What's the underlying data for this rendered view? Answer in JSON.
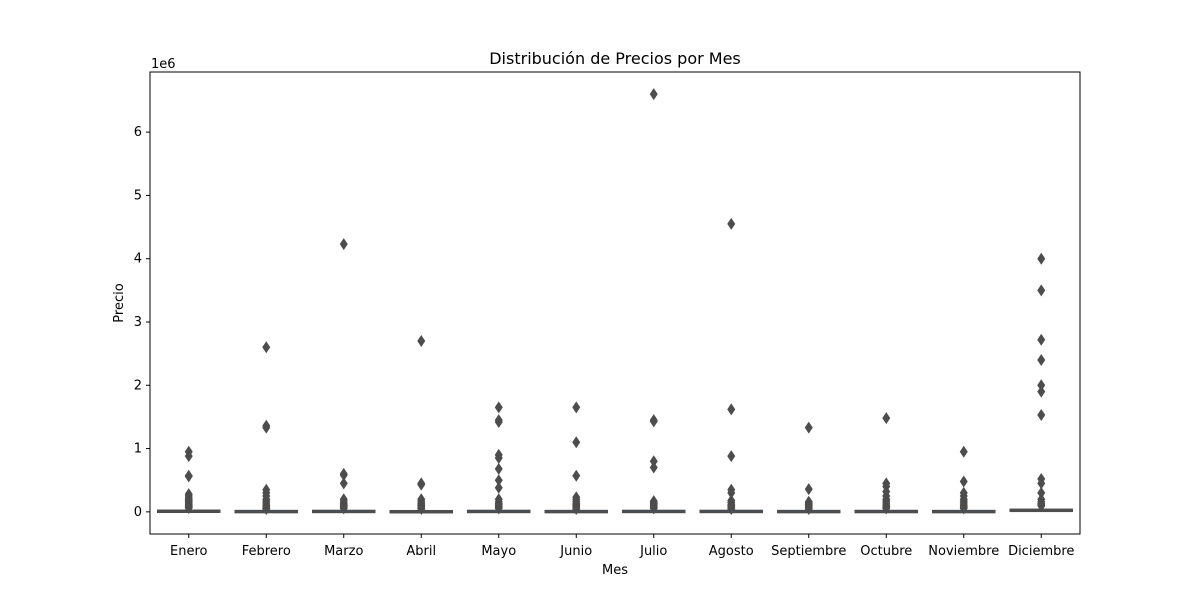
{
  "chart_data": {
    "type": "boxplot",
    "title": "Distribución de Precios por Mes",
    "xlabel": "Mes",
    "ylabel": "Precio",
    "y_offset_label": "1e6",
    "y_scale": 1000000,
    "ylim": [
      -350000,
      6950000
    ],
    "y_ticks": [
      0,
      1000000,
      2000000,
      3000000,
      4000000,
      5000000,
      6000000
    ],
    "y_tick_labels": [
      "0",
      "1",
      "2",
      "3",
      "4",
      "5",
      "6"
    ],
    "grid": false,
    "legend": "none",
    "box_color": "#4d4d4d",
    "categories": [
      "Enero",
      "Febrero",
      "Marzo",
      "Abril",
      "Mayo",
      "Junio",
      "Julio",
      "Agosto",
      "Septiembre",
      "Octubre",
      "Noviembre",
      "Diciembre"
    ],
    "series": [
      {
        "box": [
          0,
          8000,
          15000,
          25000,
          45000
        ],
        "outliers": [
          950000,
          880000,
          570000,
          560000,
          280000,
          250000,
          220000,
          200000,
          180000,
          160000,
          140000,
          120000,
          100000,
          90000,
          75000,
          60000
        ]
      },
      {
        "box": [
          0,
          5000,
          12000,
          20000,
          35000
        ],
        "outliers": [
          2600000,
          1360000,
          1330000,
          350000,
          300000,
          250000,
          200000,
          170000,
          140000,
          110000,
          90000,
          70000,
          55000,
          45000
        ]
      },
      {
        "box": [
          0,
          6000,
          13000,
          22000,
          40000
        ],
        "outliers": [
          4230000,
          600000,
          580000,
          450000,
          200000,
          170000,
          140000,
          120000,
          100000,
          85000,
          70000,
          55000
        ]
      },
      {
        "box": [
          0,
          4000,
          10000,
          18000,
          30000
        ],
        "outliers": [
          2700000,
          450000,
          430000,
          200000,
          170000,
          140000,
          120000,
          100000,
          80000,
          60000,
          45000
        ]
      },
      {
        "box": [
          0,
          6000,
          13000,
          22000,
          40000
        ],
        "outliers": [
          1650000,
          1450000,
          1420000,
          900000,
          850000,
          680000,
          500000,
          380000,
          200000,
          160000,
          130000,
          110000,
          90000,
          70000,
          55000
        ]
      },
      {
        "box": [
          0,
          5000,
          11000,
          20000,
          35000
        ],
        "outliers": [
          1650000,
          1100000,
          570000,
          230000,
          200000,
          170000,
          140000,
          120000,
          100000,
          80000,
          60000,
          45000
        ]
      },
      {
        "box": [
          0,
          6000,
          13000,
          22000,
          40000
        ],
        "outliers": [
          6600000,
          1450000,
          1430000,
          800000,
          700000,
          170000,
          150000,
          130000,
          110000,
          90000,
          70000,
          55000
        ]
      },
      {
        "box": [
          0,
          6000,
          13000,
          22000,
          40000
        ],
        "outliers": [
          4550000,
          1620000,
          880000,
          350000,
          300000,
          180000,
          150000,
          120000,
          100000,
          80000,
          60000,
          45000
        ]
      },
      {
        "box": [
          0,
          5000,
          11000,
          20000,
          35000
        ],
        "outliers": [
          1330000,
          360000,
          160000,
          140000,
          120000,
          100000,
          80000,
          60000,
          45000
        ]
      },
      {
        "box": [
          0,
          5000,
          12000,
          21000,
          38000
        ],
        "outliers": [
          1480000,
          450000,
          400000,
          320000,
          250000,
          200000,
          170000,
          140000,
          110000,
          90000,
          70000,
          55000
        ]
      },
      {
        "box": [
          0,
          5000,
          11000,
          20000,
          35000
        ],
        "outliers": [
          950000,
          480000,
          300000,
          250000,
          200000,
          170000,
          140000,
          110000,
          90000,
          70000,
          55000
        ]
      },
      {
        "box": [
          0,
          12000,
          25000,
          40000,
          70000
        ],
        "outliers": [
          4000000,
          3500000,
          2720000,
          2400000,
          2000000,
          1900000,
          1530000,
          520000,
          450000,
          300000,
          200000,
          160000,
          130000,
          110000,
          95000
        ]
      }
    ]
  }
}
